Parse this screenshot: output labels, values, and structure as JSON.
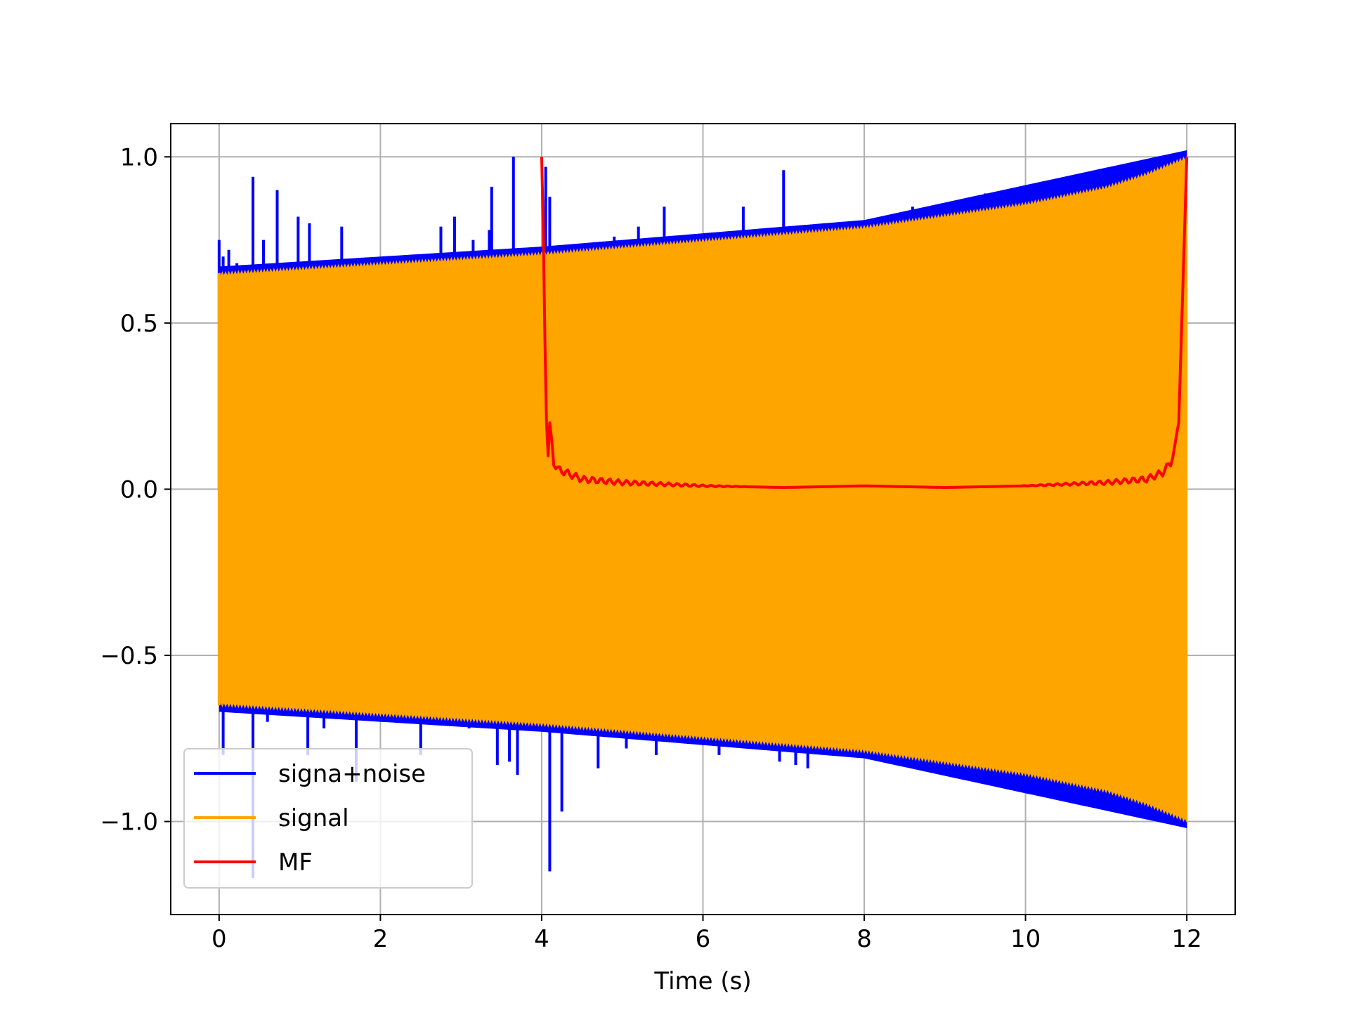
{
  "chart_data": {
    "type": "line",
    "title": "",
    "xlabel": "Time (s)",
    "ylabel": "",
    "xlim": [
      -0.6,
      12.6
    ],
    "ylim": [
      -1.28,
      1.1
    ],
    "x_ticks": [
      0,
      2,
      4,
      6,
      8,
      10,
      12
    ],
    "y_ticks": [
      1.0,
      0.5,
      0.0,
      -0.5,
      -1.0
    ],
    "x_tick_labels": [
      "0",
      "2",
      "4",
      "6",
      "8",
      "10",
      "12"
    ],
    "y_tick_labels": [
      "1.0",
      "0.5",
      "0.0",
      "−0.5",
      "−1.0"
    ],
    "grid": true,
    "legend_position": "lower-left",
    "series": [
      {
        "name": "signa+noise",
        "color": "#0000ff",
        "style": "noisy chirp",
        "envelope": {
          "x": [
            0,
            4,
            8,
            12
          ],
          "y": [
            0.65,
            0.71,
            0.79,
            1.0
          ]
        },
        "spikes": [
          {
            "x": 0.0,
            "y": 0.75
          },
          {
            "x": 0.05,
            "y": 0.7
          },
          {
            "x": 0.12,
            "y": 0.72
          },
          {
            "x": 0.22,
            "y": 0.68
          },
          {
            "x": 0.42,
            "y": 0.94
          },
          {
            "x": 0.55,
            "y": 0.75
          },
          {
            "x": 0.72,
            "y": 0.9
          },
          {
            "x": 0.98,
            "y": 0.82
          },
          {
            "x": 1.12,
            "y": 0.8
          },
          {
            "x": 1.52,
            "y": 0.79
          },
          {
            "x": 1.95,
            "y": 0.68
          },
          {
            "x": 2.75,
            "y": 0.79
          },
          {
            "x": 2.92,
            "y": 0.82
          },
          {
            "x": 3.15,
            "y": 0.75
          },
          {
            "x": 3.35,
            "y": 0.78
          },
          {
            "x": 3.38,
            "y": 0.91
          },
          {
            "x": 3.65,
            "y": 1.0
          },
          {
            "x": 4.05,
            "y": 0.97
          },
          {
            "x": 4.1,
            "y": 0.88
          },
          {
            "x": 4.9,
            "y": 0.76
          },
          {
            "x": 5.2,
            "y": 0.79
          },
          {
            "x": 5.52,
            "y": 0.85
          },
          {
            "x": 6.5,
            "y": 0.85
          },
          {
            "x": 7.0,
            "y": 0.96
          },
          {
            "x": 7.5,
            "y": 0.8
          },
          {
            "x": 8.6,
            "y": 0.85
          },
          {
            "x": 9.5,
            "y": 0.89
          },
          {
            "x": 0.05,
            "y": -0.8
          },
          {
            "x": 0.42,
            "y": -1.17
          },
          {
            "x": 0.6,
            "y": -0.7
          },
          {
            "x": 1.1,
            "y": -0.8
          },
          {
            "x": 1.3,
            "y": -0.72
          },
          {
            "x": 1.7,
            "y": -0.88
          },
          {
            "x": 2.5,
            "y": -0.8
          },
          {
            "x": 3.1,
            "y": -0.72
          },
          {
            "x": 3.45,
            "y": -0.83
          },
          {
            "x": 3.6,
            "y": -0.82
          },
          {
            "x": 3.7,
            "y": -0.86
          },
          {
            "x": 4.1,
            "y": -1.15
          },
          {
            "x": 4.25,
            "y": -0.97
          },
          {
            "x": 4.7,
            "y": -0.84
          },
          {
            "x": 5.05,
            "y": -0.78
          },
          {
            "x": 5.42,
            "y": -0.8
          },
          {
            "x": 6.2,
            "y": -0.8
          },
          {
            "x": 6.95,
            "y": -0.82
          },
          {
            "x": 7.15,
            "y": -0.83
          },
          {
            "x": 7.3,
            "y": -0.84
          },
          {
            "x": 7.8,
            "y": -0.78
          },
          {
            "x": 9.8,
            "y": -0.87
          },
          {
            "x": 11.05,
            "y": -0.93
          }
        ]
      },
      {
        "name": "signal",
        "color": "#ffa500",
        "style": "chirp",
        "x": [
          0,
          2,
          4,
          6,
          8,
          10,
          11,
          11.5,
          12
        ],
        "y": [
          0.65,
          0.68,
          0.71,
          0.75,
          0.79,
          0.86,
          0.91,
          0.95,
          1.0
        ]
      },
      {
        "name": "MF",
        "color": "#ff0000",
        "style": "line",
        "x": [
          4.0,
          4.02,
          4.04,
          4.06,
          4.08,
          4.1,
          4.15,
          4.2,
          4.3,
          4.5,
          5.0,
          6.0,
          7.0,
          8.0,
          9.0,
          10.0,
          11.0,
          11.5,
          11.7,
          11.8,
          11.85,
          11.9,
          11.95,
          12.0
        ],
        "y": [
          1.0,
          0.78,
          0.45,
          0.2,
          0.1,
          0.2,
          0.08,
          0.06,
          0.05,
          0.03,
          0.02,
          0.01,
          0.005,
          0.01,
          0.005,
          0.01,
          0.02,
          0.03,
          0.05,
          0.08,
          0.12,
          0.2,
          0.6,
          1.0
        ]
      }
    ]
  }
}
